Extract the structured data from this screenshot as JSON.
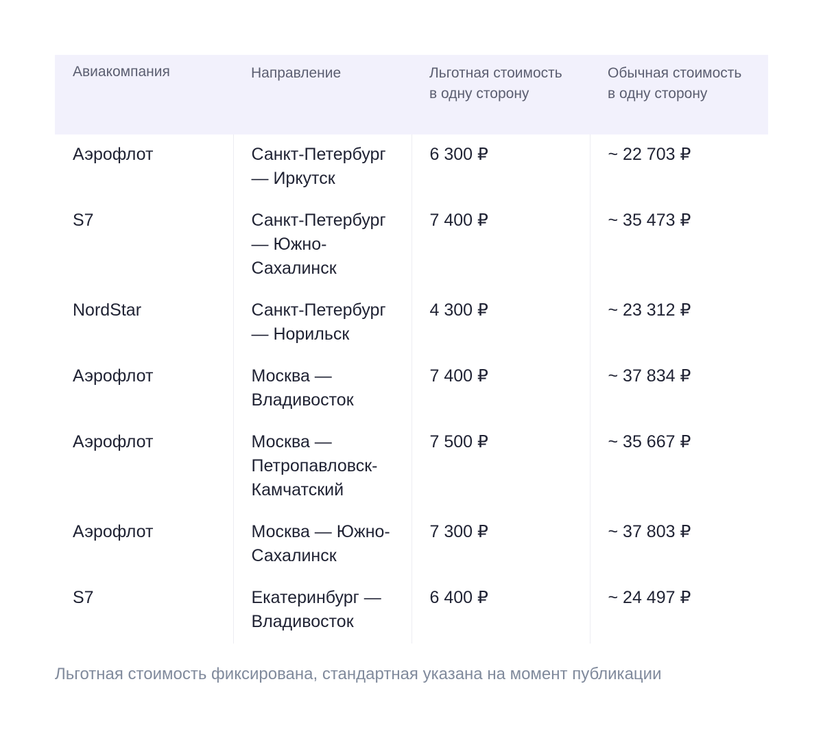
{
  "table": {
    "headers": [
      "Авиакомпания",
      "Направление",
      "Льготная стоимость в одну сторону",
      "Обычная стоимость в одну сторону"
    ],
    "rows": [
      [
        "Аэрофлот",
        "Санкт-Петербург — Иркутск",
        "6 300 ₽",
        "~ 22 703 ₽"
      ],
      [
        "S7",
        "Санкт-Петербург — Южно-Сахалинск",
        "7 400 ₽",
        "~ 35 473 ₽"
      ],
      [
        "NordStar",
        "Санкт-Петербург — Норильск",
        "4 300 ₽",
        "~ 23 312 ₽"
      ],
      [
        "Аэрофлот",
        "Москва — Владивосток",
        "7 400 ₽",
        "~ 37 834 ₽"
      ],
      [
        "Аэрофлот",
        "Москва — Петропавловск-Камчатский",
        "7 500 ₽",
        "~ 35 667 ₽"
      ],
      [
        "Аэрофлот",
        "Москва — Южно-Сахалинск",
        "7 300 ₽",
        "~ 37 803 ₽"
      ],
      [
        "S7",
        "Екатеринбург — Владивосток",
        "6 400 ₽",
        "~ 24 497 ₽"
      ]
    ]
  },
  "note": "Льготная стоимость фиксирована, стандартная указана на момент публикации",
  "colors": {
    "header_background": "#f2f1fc",
    "header_text": "#5b5e70",
    "body_text": "#1f2233",
    "note_text": "#808a9c"
  }
}
